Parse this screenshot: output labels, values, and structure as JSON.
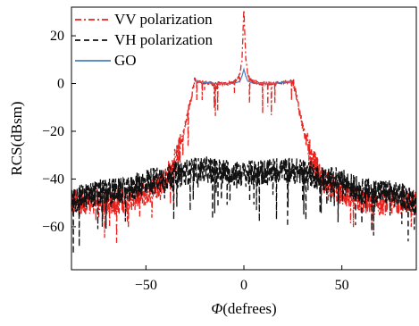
{
  "chart_data": {
    "type": "line",
    "title": "",
    "xlabel_symbol": "Φ",
    "xlabel_unit": "(defrees)",
    "ylabel": "RCS(dBsm)",
    "xlim": [
      -88,
      88
    ],
    "ylim": [
      -78,
      32
    ],
    "xticks": [
      -50,
      0,
      50
    ],
    "yticks": [
      20,
      0,
      -20,
      -40,
      -60
    ],
    "grid": false,
    "legend_position": "top-left",
    "series": [
      {
        "name": "VV polarization",
        "color": "#e8231e",
        "dash": "dash-dot",
        "x": [
          -88,
          -80,
          -70,
          -60,
          -50,
          -45,
          -40,
          -35,
          -32,
          -29,
          -27,
          -26,
          -25,
          -15,
          -8,
          -4,
          -2,
          -1,
          -0.5,
          0,
          0.5,
          1,
          2,
          4,
          8,
          15,
          25,
          26,
          27,
          29,
          32,
          35,
          40,
          45,
          50,
          60,
          70,
          80,
          88
        ],
        "y": [
          -50,
          -49,
          -50,
          -49,
          -46,
          -43,
          -40,
          -32,
          -25,
          -14,
          -6,
          -2,
          1,
          0,
          0,
          1,
          4,
          10,
          20,
          32,
          20,
          10,
          4,
          1,
          0,
          0,
          1,
          -2,
          -6,
          -14,
          -25,
          -32,
          -40,
          -43,
          -46,
          -49,
          -50,
          -49,
          -50
        ]
      },
      {
        "name": "VH polarization",
        "color": "#111111",
        "dash": "dash",
        "x": [
          -88,
          -80,
          -70,
          -60,
          -50,
          -45,
          -40,
          -35,
          -30,
          -20,
          -10,
          0,
          10,
          20,
          30,
          35,
          40,
          45,
          50,
          60,
          70,
          80,
          88
        ],
        "y": [
          -49,
          -47,
          -45,
          -45,
          -41,
          -40,
          -40,
          -38,
          -37,
          -36,
          -37,
          -38,
          -37,
          -36,
          -37,
          -38,
          -40,
          -40,
          -41,
          -45,
          -45,
          -47,
          -49
        ]
      },
      {
        "name": "GO",
        "color": "#4a7fc1",
        "dash": "solid",
        "x": [
          -25,
          -15,
          -5,
          -2,
          -1,
          0,
          1,
          2,
          5,
          15,
          25
        ],
        "y": [
          1,
          0,
          0,
          1,
          3,
          6,
          3,
          1,
          0,
          0,
          1
        ]
      }
    ]
  }
}
